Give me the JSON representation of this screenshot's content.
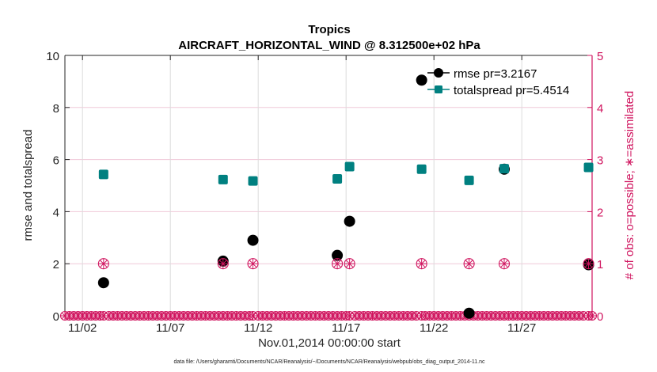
{
  "chart_data": {
    "type": "scatter",
    "title": "Tropics",
    "subtitle": "AIRCRAFT_HORIZONTAL_WIND @ 8.312500e+02 hPa",
    "xlabel": "Nov.01,2014 00:00:00 start",
    "ylabel": "rmse and totalspread",
    "y2label": "# of obs: o=possible; ∗=assimilated",
    "footnote": "data file: /Users/gharamti/Documents/NCAR/Reanalysis/~/Documents/NCAR/Reanalysis/webpub/obs_diag_output_2014-11.nc",
    "xlim_days": [
      0,
      30
    ],
    "ylim": [
      0,
      10
    ],
    "y2lim": [
      0,
      5
    ],
    "x_ticks": [
      {
        "day": 1,
        "label": "11/02"
      },
      {
        "day": 6,
        "label": "11/07"
      },
      {
        "day": 11,
        "label": "11/12"
      },
      {
        "day": 16,
        "label": "11/17"
      },
      {
        "day": 21,
        "label": "11/22"
      },
      {
        "day": 26,
        "label": "11/27"
      }
    ],
    "y_ticks": [
      "0",
      "2",
      "4",
      "6",
      "8",
      "10"
    ],
    "y2_ticks": [
      "0",
      "1",
      "2",
      "3",
      "4",
      "5"
    ],
    "grid": true,
    "legend_position": "top-right",
    "colors": {
      "rmse": "#000000",
      "totalspread": "#008080",
      "obs": "#d0155f"
    },
    "series": [
      {
        "name": "rmse",
        "legend": "rmse pr=3.2167",
        "x": [
          2.2,
          9.0,
          10.7,
          15.5,
          16.2,
          20.3,
          23.0,
          25.0,
          29.8
        ],
        "y": [
          1.27,
          2.1,
          2.9,
          2.32,
          3.63,
          9.05,
          0.1,
          5.63,
          1.96
        ]
      },
      {
        "name": "totalspread",
        "legend": "totalspread pr=5.4514",
        "x": [
          2.2,
          9.0,
          10.7,
          15.5,
          16.2,
          20.3,
          23.0,
          25.0,
          29.8
        ],
        "y": [
          5.43,
          5.23,
          5.18,
          5.26,
          5.73,
          5.63,
          5.2,
          5.65,
          5.7
        ]
      },
      {
        "name": "obs_possible_and_assimilated",
        "x": [
          2.2,
          9.0,
          10.7,
          15.5,
          16.2,
          20.3,
          23.0,
          25.0,
          29.8
        ],
        "y2": [
          1,
          1,
          1,
          1,
          1,
          1,
          1,
          1,
          1
        ]
      }
    ],
    "zero_obs_note": "All other 6-hourly times show 0 possible / 0 assimilated obs"
  }
}
